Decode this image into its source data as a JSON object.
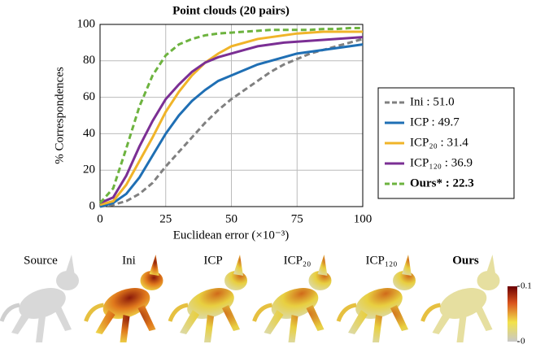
{
  "chart_data": {
    "type": "line",
    "title": "Point clouds (20 pairs)",
    "x_label": "Euclidean error (×10⁻³)",
    "y_label": "% Correspondences",
    "x": [
      0,
      5,
      10,
      15,
      20,
      25,
      30,
      35,
      40,
      45,
      50,
      55,
      60,
      65,
      70,
      75,
      80,
      85,
      90,
      95,
      100
    ],
    "xlim": [
      0,
      100
    ],
    "xticks": [
      0,
      25,
      50,
      75,
      100
    ],
    "ylim": [
      0,
      100
    ],
    "yticks": [
      0,
      20,
      40,
      60,
      80,
      100
    ],
    "grid": true,
    "series": [
      {
        "name": "Ini : 51.0",
        "color": "#808080",
        "dashed": true,
        "values": [
          0,
          1,
          3,
          7,
          13,
          22,
          30,
          38,
          46,
          53,
          59,
          64,
          69,
          74,
          78,
          81,
          84,
          86,
          88,
          90,
          92
        ]
      },
      {
        "name": "ICP : 49.7",
        "color": "#1f6fb4",
        "dashed": false,
        "values": [
          0,
          2,
          7,
          16,
          28,
          40,
          50,
          58,
          64,
          69,
          72,
          75,
          78,
          80,
          82,
          84,
          85,
          86,
          87,
          88,
          89
        ]
      },
      {
        "name": "ICP₂₀ : 31.4",
        "color": "#f0b429",
        "dashed": false,
        "values": [
          1,
          3,
          12,
          25,
          38,
          52,
          63,
          72,
          79,
          84,
          88,
          90,
          92,
          93,
          94,
          95,
          95.5,
          96,
          96,
          96,
          96
        ]
      },
      {
        "name": "ICP₁₂₀ : 36.9",
        "color": "#7b2f94",
        "dashed": false,
        "values": [
          2,
          5,
          17,
          33,
          47,
          59,
          67,
          74,
          79,
          82,
          84,
          86,
          88,
          89,
          90,
          90.5,
          91,
          91.5,
          92,
          92.5,
          93
        ]
      },
      {
        "name": "Ours* : 22.3",
        "color": "#6db33f",
        "dashed": true,
        "bold": true,
        "values": [
          2,
          10,
          32,
          55,
          72,
          83,
          89,
          92,
          94,
          95,
          95.5,
          96,
          96.5,
          97,
          97,
          97,
          97,
          97.5,
          97.5,
          98,
          98
        ]
      }
    ]
  },
  "renders": {
    "labels": [
      "Source",
      "Ini",
      "ICP",
      "ICP₂₀",
      "ICP₁₂₀",
      "Ours"
    ],
    "colorbar": {
      "ticks": [
        0,
        0.1
      ]
    }
  }
}
